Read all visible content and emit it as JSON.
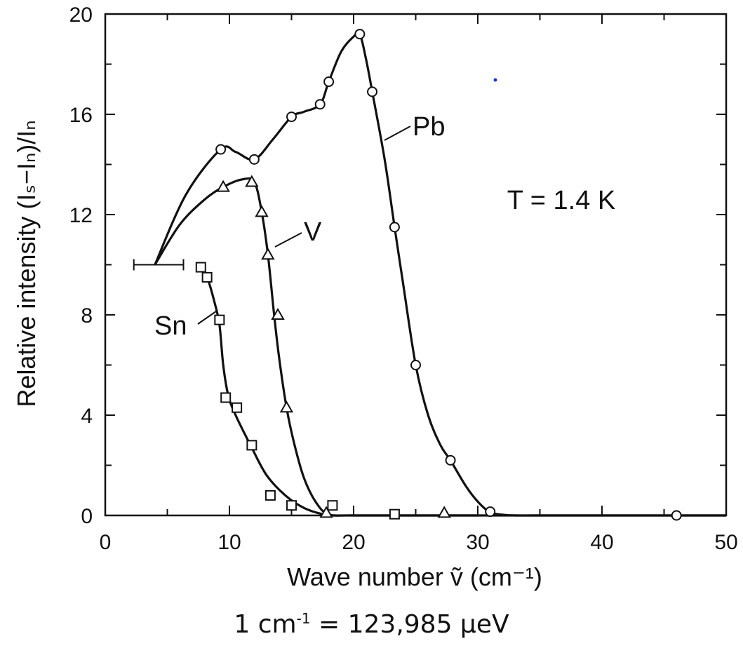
{
  "chart_data": {
    "type": "line",
    "xlabel": "Wave number ṽ (cm⁻¹)",
    "ylabel": "Relative intensity (Iₛ−Iₙ)/Iₙ",
    "xlim": [
      0,
      50
    ],
    "ylim": [
      0,
      20
    ],
    "xticks": [
      0,
      10,
      20,
      30,
      40,
      50
    ],
    "yticks": [
      0,
      4,
      8,
      12,
      16,
      20
    ],
    "grid": false,
    "annotation": "T = 1.4 K",
    "series": [
      {
        "name": "Pb",
        "marker": "circle",
        "x": [
          4.0,
          6.5,
          9.3,
          10.5,
          12.0,
          13.5,
          15.0,
          16.0,
          17.3,
          18.0,
          19.0,
          20.0,
          20.5,
          21.0,
          21.5,
          22.5,
          23.3,
          24.0,
          25.0,
          26.0,
          27.0,
          27.8,
          29.0,
          30.0,
          31.0,
          32.0,
          33.0,
          35.0,
          40.0,
          46.0,
          50.0
        ],
        "y": [
          10.0,
          12.8,
          14.6,
          14.5,
          14.2,
          15.0,
          15.9,
          16.1,
          16.4,
          17.3,
          18.5,
          19.1,
          19.2,
          18.2,
          16.9,
          14.2,
          11.5,
          9.2,
          6.0,
          4.0,
          2.8,
          2.2,
          1.2,
          0.55,
          0.12,
          0.03,
          0.0,
          0.0,
          0.0,
          0.0,
          0.0
        ],
        "markers_x": [
          9.3,
          12.0,
          15.0,
          17.3,
          18.0,
          20.5,
          21.5,
          23.3,
          25.0,
          27.8,
          31.0,
          46.0
        ],
        "markers_y": [
          14.6,
          14.2,
          15.9,
          16.4,
          17.3,
          19.2,
          16.9,
          11.5,
          6.0,
          2.2,
          0.15,
          0.0
        ]
      },
      {
        "name": "V",
        "marker": "triangle",
        "x": [
          4.0,
          6.0,
          8.0,
          9.5,
          11.0,
          12.0,
          12.6,
          13.1,
          13.6,
          14.0,
          14.6,
          15.2,
          16.0,
          17.0,
          18.0,
          20.0,
          30.0,
          50.0
        ],
        "y": [
          10.0,
          11.6,
          12.6,
          13.1,
          13.4,
          13.3,
          12.1,
          10.4,
          8.0,
          6.3,
          4.3,
          2.9,
          1.5,
          0.5,
          0.05,
          0.0,
          0.0,
          0.0
        ],
        "markers_x": [
          9.5,
          11.8,
          12.6,
          13.1,
          13.9,
          14.6,
          17.8,
          27.3
        ],
        "markers_y": [
          13.1,
          13.3,
          12.1,
          10.4,
          8.0,
          4.3,
          0.1,
          0.1
        ]
      },
      {
        "name": "Sn",
        "marker": "square",
        "x": [
          7.5,
          8.2,
          8.8,
          9.2,
          9.5,
          9.9,
          10.5,
          11.8,
          13.0,
          14.5,
          16.0,
          17.5,
          18.5,
          20.0,
          23.5,
          30.0
        ],
        "y": [
          10.0,
          9.5,
          8.5,
          7.6,
          6.0,
          4.8,
          4.0,
          2.7,
          1.6,
          0.8,
          0.3,
          0.05,
          0.0,
          0.0,
          0.0,
          0.0
        ],
        "markers_x": [
          7.7,
          8.2,
          9.2,
          9.7,
          10.6,
          11.8,
          13.3,
          15.0,
          18.3,
          23.3
        ],
        "markers_y": [
          9.9,
          9.5,
          7.8,
          4.7,
          4.3,
          2.8,
          0.8,
          0.4,
          0.4,
          0.05
        ]
      }
    ],
    "error_bar": {
      "x_from": 2.3,
      "x_to": 6.3,
      "y": 10.0
    }
  },
  "footnote": {
    "lhs_prefix": "1 cm",
    "lhs_exponent": "-1",
    "rhs": " = 123,985 μeV"
  }
}
